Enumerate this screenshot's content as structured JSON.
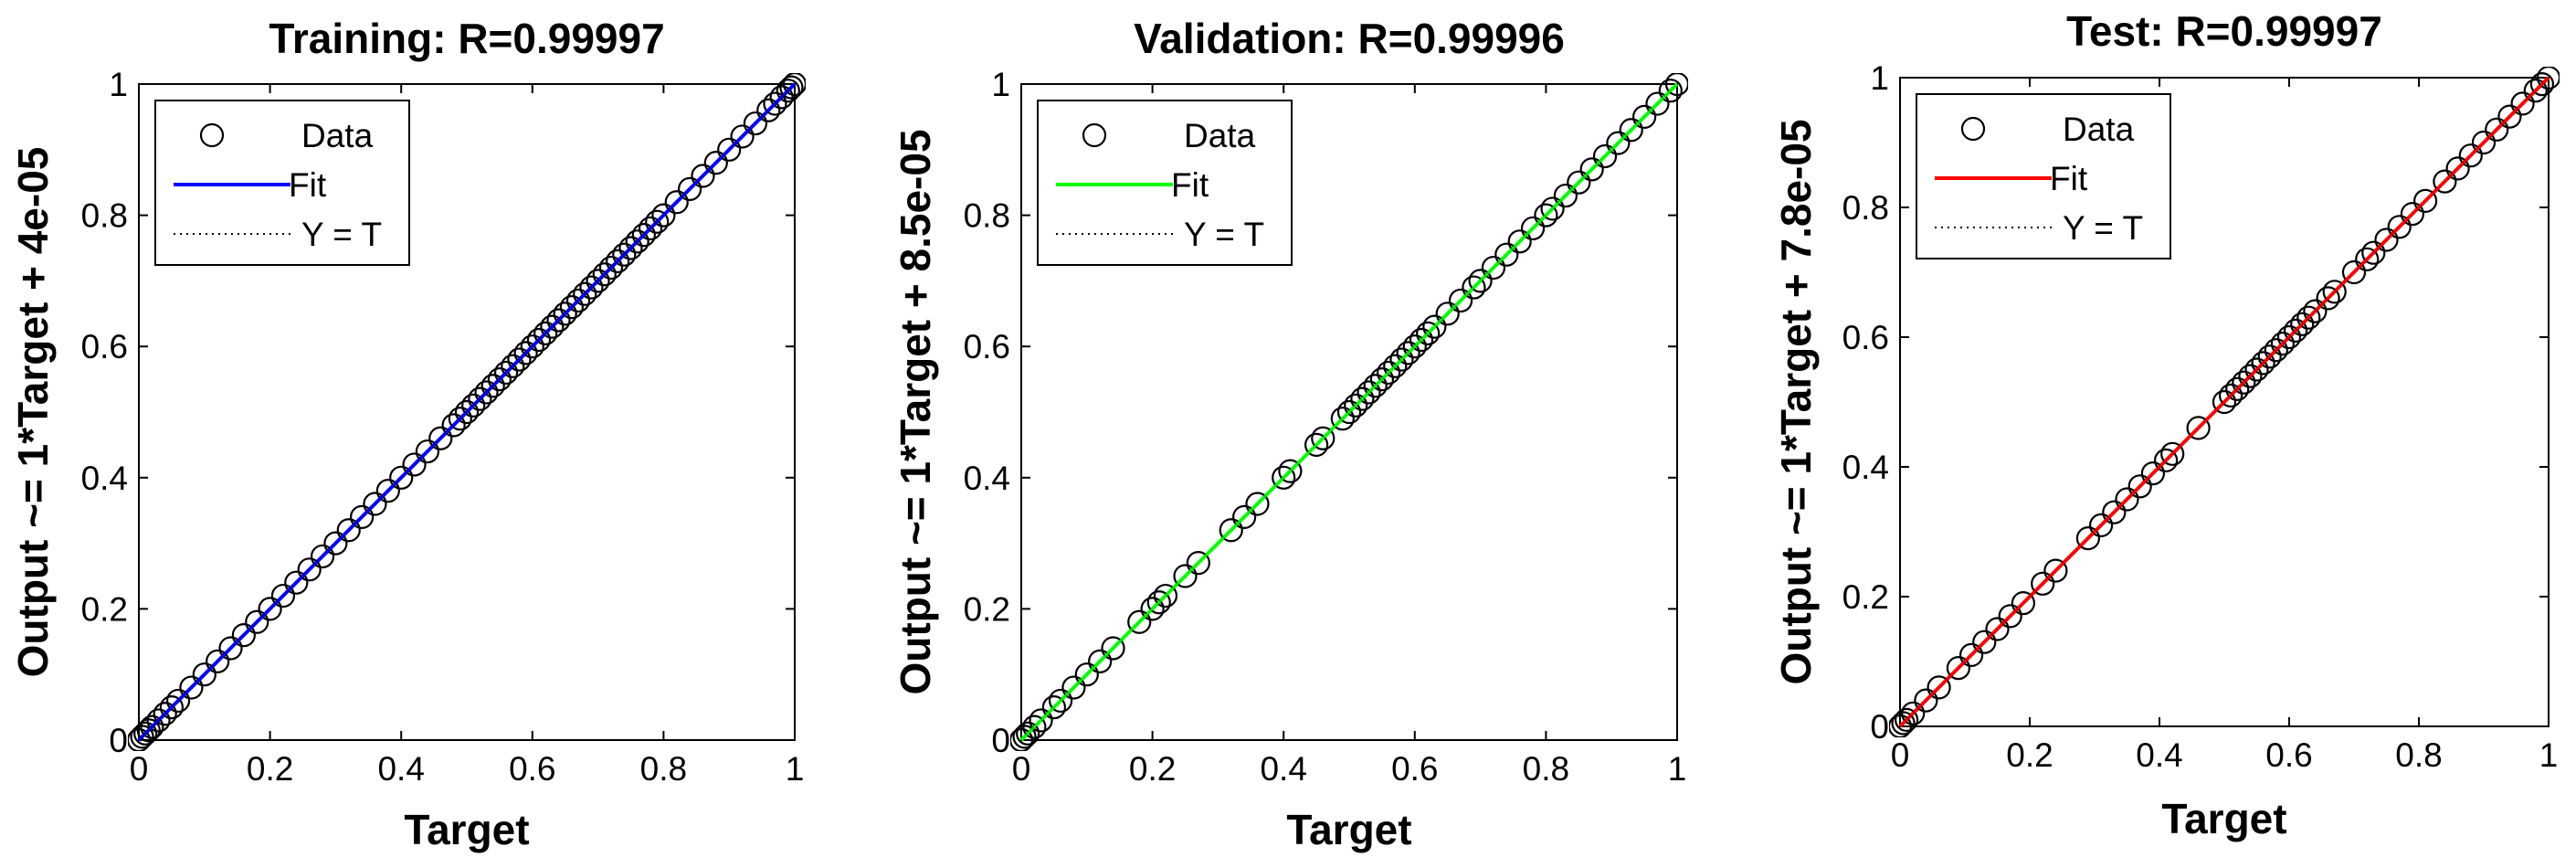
{
  "chart_data": [
    {
      "type": "scatter",
      "title": "Training: R=0.99997",
      "xlabel": "Target",
      "ylabel": "Output ~= 1*Target + 4e-05",
      "xlim": [
        0,
        1
      ],
      "ylim": [
        0,
        1
      ],
      "xticks": [
        "0",
        "0.2",
        "0.4",
        "0.6",
        "0.8",
        "1"
      ],
      "yticks": [
        "0",
        "0.2",
        "0.4",
        "0.6",
        "0.8",
        "1"
      ],
      "legend": [
        "Data",
        "Fit",
        "Y = T"
      ],
      "legend_position": "top-left",
      "fit_color": "#0000ff",
      "fit": {
        "slope": 1,
        "intercept": 4e-05
      },
      "series": [
        {
          "values": [
            [
              0.0,
              0.0
            ],
            [
              0.005,
              0.005
            ],
            [
              0.01,
              0.01
            ],
            [
              0.015,
              0.015
            ],
            [
              0.02,
              0.02
            ],
            [
              0.03,
              0.03
            ],
            [
              0.04,
              0.04
            ],
            [
              0.05,
              0.05
            ],
            [
              0.06,
              0.06
            ],
            [
              0.08,
              0.08
            ],
            [
              0.1,
              0.1
            ],
            [
              0.12,
              0.12
            ],
            [
              0.14,
              0.14
            ],
            [
              0.16,
              0.16
            ],
            [
              0.18,
              0.18
            ],
            [
              0.2,
              0.2
            ],
            [
              0.22,
              0.22
            ],
            [
              0.24,
              0.24
            ],
            [
              0.26,
              0.26
            ],
            [
              0.28,
              0.28
            ],
            [
              0.3,
              0.3
            ],
            [
              0.32,
              0.32
            ],
            [
              0.34,
              0.34
            ],
            [
              0.36,
              0.36
            ],
            [
              0.38,
              0.38
            ],
            [
              0.4,
              0.4
            ],
            [
              0.42,
              0.42
            ],
            [
              0.44,
              0.44
            ],
            [
              0.46,
              0.46
            ],
            [
              0.48,
              0.48
            ],
            [
              0.49,
              0.49
            ],
            [
              0.5,
              0.5
            ],
            [
              0.51,
              0.51
            ],
            [
              0.52,
              0.52
            ],
            [
              0.53,
              0.53
            ],
            [
              0.54,
              0.54
            ],
            [
              0.55,
              0.55
            ],
            [
              0.56,
              0.56
            ],
            [
              0.57,
              0.57
            ],
            [
              0.58,
              0.58
            ],
            [
              0.59,
              0.59
            ],
            [
              0.6,
              0.6
            ],
            [
              0.61,
              0.61
            ],
            [
              0.62,
              0.62
            ],
            [
              0.63,
              0.63
            ],
            [
              0.64,
              0.64
            ],
            [
              0.65,
              0.65
            ],
            [
              0.66,
              0.66
            ],
            [
              0.67,
              0.67
            ],
            [
              0.68,
              0.68
            ],
            [
              0.69,
              0.69
            ],
            [
              0.7,
              0.7
            ],
            [
              0.71,
              0.71
            ],
            [
              0.72,
              0.72
            ],
            [
              0.73,
              0.73
            ],
            [
              0.74,
              0.74
            ],
            [
              0.75,
              0.75
            ],
            [
              0.76,
              0.76
            ],
            [
              0.77,
              0.77
            ],
            [
              0.78,
              0.78
            ],
            [
              0.79,
              0.79
            ],
            [
              0.8,
              0.8
            ],
            [
              0.82,
              0.82
            ],
            [
              0.84,
              0.84
            ],
            [
              0.86,
              0.86
            ],
            [
              0.88,
              0.88
            ],
            [
              0.9,
              0.9
            ],
            [
              0.92,
              0.92
            ],
            [
              0.94,
              0.94
            ],
            [
              0.96,
              0.96
            ],
            [
              0.97,
              0.97
            ],
            [
              0.98,
              0.98
            ],
            [
              0.99,
              0.99
            ],
            [
              0.995,
              0.995
            ],
            [
              1.0,
              1.0
            ]
          ]
        }
      ]
    },
    {
      "type": "scatter",
      "title": "Validation: R=0.99996",
      "xlabel": "Target",
      "ylabel": "Output ~= 1*Target + 8.5e-05",
      "xlim": [
        0,
        1
      ],
      "ylim": [
        0,
        1
      ],
      "xticks": [
        "0",
        "0.2",
        "0.4",
        "0.6",
        "0.8",
        "1"
      ],
      "yticks": [
        "0",
        "0.2",
        "0.4",
        "0.6",
        "0.8",
        "1"
      ],
      "legend": [
        "Data",
        "Fit",
        "Y = T"
      ],
      "legend_position": "top-left",
      "fit_color": "#00ff00",
      "fit": {
        "slope": 1,
        "intercept": 8.5e-05
      },
      "series": [
        {
          "values": [
            [
              0.0,
              0.0
            ],
            [
              0.005,
              0.005
            ],
            [
              0.01,
              0.01
            ],
            [
              0.02,
              0.02
            ],
            [
              0.03,
              0.03
            ],
            [
              0.05,
              0.05
            ],
            [
              0.06,
              0.06
            ],
            [
              0.08,
              0.08
            ],
            [
              0.1,
              0.1
            ],
            [
              0.12,
              0.12
            ],
            [
              0.14,
              0.14
            ],
            [
              0.18,
              0.18
            ],
            [
              0.2,
              0.2
            ],
            [
              0.21,
              0.21
            ],
            [
              0.22,
              0.22
            ],
            [
              0.25,
              0.25
            ],
            [
              0.27,
              0.27
            ],
            [
              0.32,
              0.32
            ],
            [
              0.34,
              0.34
            ],
            [
              0.36,
              0.36
            ],
            [
              0.4,
              0.4
            ],
            [
              0.41,
              0.41
            ],
            [
              0.45,
              0.45
            ],
            [
              0.46,
              0.46
            ],
            [
              0.49,
              0.49
            ],
            [
              0.5,
              0.5
            ],
            [
              0.51,
              0.51
            ],
            [
              0.52,
              0.52
            ],
            [
              0.53,
              0.53
            ],
            [
              0.54,
              0.54
            ],
            [
              0.55,
              0.55
            ],
            [
              0.56,
              0.56
            ],
            [
              0.57,
              0.57
            ],
            [
              0.58,
              0.58
            ],
            [
              0.59,
              0.59
            ],
            [
              0.6,
              0.6
            ],
            [
              0.61,
              0.61
            ],
            [
              0.62,
              0.62
            ],
            [
              0.63,
              0.63
            ],
            [
              0.65,
              0.65
            ],
            [
              0.67,
              0.67
            ],
            [
              0.69,
              0.69
            ],
            [
              0.7,
              0.7
            ],
            [
              0.72,
              0.72
            ],
            [
              0.74,
              0.74
            ],
            [
              0.76,
              0.76
            ],
            [
              0.78,
              0.78
            ],
            [
              0.8,
              0.8
            ],
            [
              0.81,
              0.81
            ],
            [
              0.83,
              0.83
            ],
            [
              0.85,
              0.85
            ],
            [
              0.87,
              0.87
            ],
            [
              0.89,
              0.89
            ],
            [
              0.91,
              0.91
            ],
            [
              0.93,
              0.93
            ],
            [
              0.95,
              0.95
            ],
            [
              0.97,
              0.97
            ],
            [
              0.99,
              0.99
            ],
            [
              1.0,
              1.0
            ]
          ]
        }
      ]
    },
    {
      "type": "scatter",
      "title": "Test: R=0.99997",
      "xlabel": "Target",
      "ylabel": "Output ~= 1*Target + 7.8e-05",
      "xlim": [
        0,
        1
      ],
      "ylim": [
        0,
        1
      ],
      "xticks": [
        "0",
        "0.2",
        "0.4",
        "0.6",
        "0.8",
        "1"
      ],
      "yticks": [
        "0",
        "0.2",
        "0.4",
        "0.6",
        "0.8",
        "1"
      ],
      "legend": [
        "Data",
        "Fit",
        "Y = T"
      ],
      "legend_position": "top-left",
      "fit_color": "#ff0000",
      "fit": {
        "slope": 1,
        "intercept": 7.8e-05
      },
      "series": [
        {
          "values": [
            [
              0.0,
              0.0
            ],
            [
              0.005,
              0.005
            ],
            [
              0.01,
              0.01
            ],
            [
              0.02,
              0.02
            ],
            [
              0.04,
              0.04
            ],
            [
              0.06,
              0.06
            ],
            [
              0.09,
              0.09
            ],
            [
              0.11,
              0.11
            ],
            [
              0.13,
              0.13
            ],
            [
              0.15,
              0.15
            ],
            [
              0.17,
              0.17
            ],
            [
              0.19,
              0.19
            ],
            [
              0.22,
              0.22
            ],
            [
              0.24,
              0.24
            ],
            [
              0.29,
              0.29
            ],
            [
              0.31,
              0.31
            ],
            [
              0.33,
              0.33
            ],
            [
              0.35,
              0.35
            ],
            [
              0.37,
              0.37
            ],
            [
              0.39,
              0.39
            ],
            [
              0.41,
              0.41
            ],
            [
              0.42,
              0.42
            ],
            [
              0.46,
              0.46
            ],
            [
              0.5,
              0.5
            ],
            [
              0.51,
              0.51
            ],
            [
              0.52,
              0.52
            ],
            [
              0.53,
              0.53
            ],
            [
              0.54,
              0.54
            ],
            [
              0.55,
              0.55
            ],
            [
              0.56,
              0.56
            ],
            [
              0.57,
              0.57
            ],
            [
              0.58,
              0.58
            ],
            [
              0.59,
              0.59
            ],
            [
              0.6,
              0.6
            ],
            [
              0.61,
              0.61
            ],
            [
              0.62,
              0.62
            ],
            [
              0.63,
              0.63
            ],
            [
              0.64,
              0.64
            ],
            [
              0.66,
              0.66
            ],
            [
              0.67,
              0.67
            ],
            [
              0.7,
              0.7
            ],
            [
              0.72,
              0.72
            ],
            [
              0.73,
              0.73
            ],
            [
              0.75,
              0.75
            ],
            [
              0.77,
              0.77
            ],
            [
              0.79,
              0.79
            ],
            [
              0.81,
              0.81
            ],
            [
              0.84,
              0.84
            ],
            [
              0.86,
              0.86
            ],
            [
              0.88,
              0.88
            ],
            [
              0.9,
              0.9
            ],
            [
              0.92,
              0.92
            ],
            [
              0.94,
              0.94
            ],
            [
              0.96,
              0.96
            ],
            [
              0.98,
              0.98
            ],
            [
              0.99,
              0.99
            ],
            [
              1.0,
              1.0
            ]
          ]
        }
      ]
    }
  ]
}
